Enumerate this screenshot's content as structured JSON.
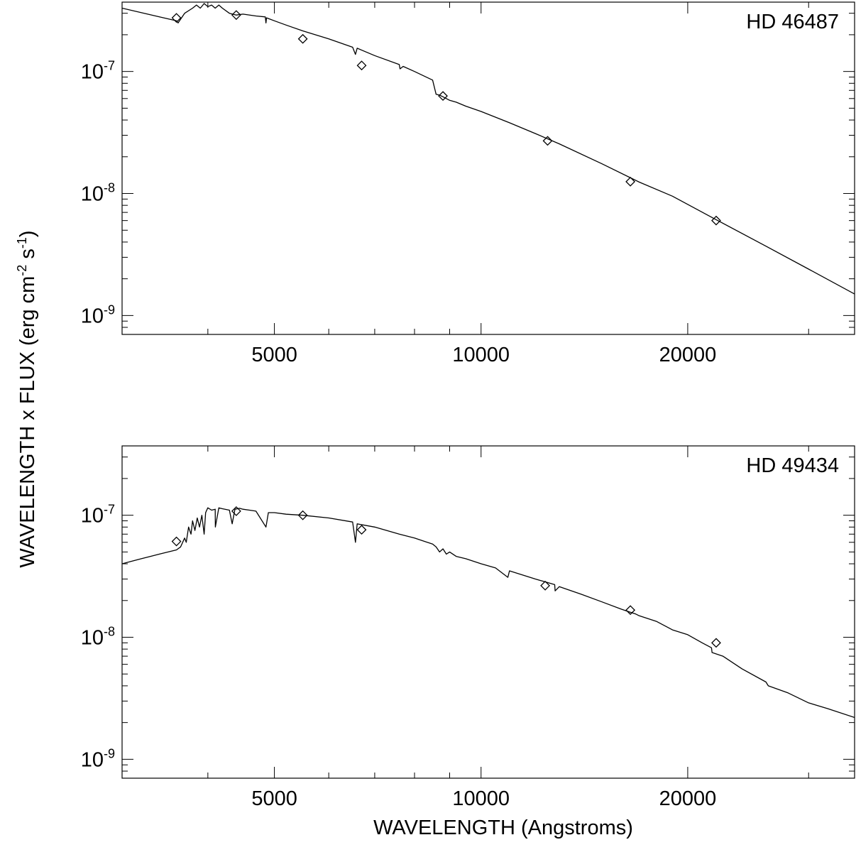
{
  "figure": {
    "ylabel": {
      "main": "WAVELENGTH x FLUX (erg cm",
      "cm_exp": "-2",
      "mid": " s",
      "s_exp": "-1",
      "end": ")"
    },
    "xlabel": "WAVELENGTH (Angstroms)"
  },
  "chart_data": [
    {
      "type": "line",
      "label": "HD 46487",
      "xscale": "log",
      "yscale": "log",
      "xlim": [
        3000,
        35000
      ],
      "ylim": [
        7e-10,
        3.7e-07
      ],
      "xticks": [
        {
          "value": 5000,
          "label": "5000"
        },
        {
          "value": 10000,
          "label": "10000"
        },
        {
          "value": 20000,
          "label": "20000"
        }
      ],
      "yticks": [
        {
          "value": 1e-07,
          "mantissa": "10",
          "exp": "-7"
        },
        {
          "value": 1e-08,
          "mantissa": "10",
          "exp": "-8"
        },
        {
          "value": 1e-09,
          "mantissa": "10",
          "exp": "-9"
        }
      ],
      "model": {
        "x": [
          3000,
          3400,
          3600,
          3620,
          3700,
          3800,
          3850,
          3900,
          3950,
          4000,
          4050,
          4100,
          4150,
          4200,
          4300,
          4400,
          4500,
          4700,
          4850,
          4861,
          4870,
          5000,
          5200,
          5500,
          6000,
          6500,
          6563,
          6600,
          7000,
          7600,
          7620,
          7700,
          8000,
          8500,
          8600,
          8700,
          8800,
          8900,
          9000,
          9200,
          9500,
          10000,
          11000,
          12000,
          13000,
          15000,
          17000,
          19000,
          22000,
          26000,
          30000,
          35000
        ],
        "y": [
          3.3e-07,
          2.8e-07,
          2.6e-07,
          2.5e-07,
          3e-07,
          3.3e-07,
          3.5e-07,
          3.3e-07,
          3.6e-07,
          3.4e-07,
          3.5e-07,
          3.3e-07,
          3.5e-07,
          3.3e-07,
          3e-07,
          2.9e-07,
          2.95e-07,
          2.85e-07,
          2.8e-07,
          2.5e-07,
          2.75e-07,
          2.6e-07,
          2.4e-07,
          2.15e-07,
          1.85e-07,
          1.58e-07,
          1.38e-07,
          1.55e-07,
          1.35e-07,
          1.14e-07,
          1.05e-07,
          1.1e-07,
          1e-07,
          8.5e-08,
          6.5e-08,
          6.4e-08,
          6.2e-08,
          6e-08,
          5.8e-08,
          5.6e-08,
          5.2e-08,
          4.7e-08,
          3.8e-08,
          3.1e-08,
          2.55e-08,
          1.75e-08,
          1.24e-08,
          9.5e-09,
          6.1e-09,
          3.7e-09,
          2.4e-09,
          1.5e-09
        ]
      },
      "photometry": {
        "x": [
          3600,
          4400,
          5500,
          6700,
          8800,
          12500,
          16500,
          22000
        ],
        "y": [
          2.75e-07,
          2.9e-07,
          1.85e-07,
          1.12e-07,
          6.3e-08,
          2.7e-08,
          1.25e-08,
          6e-09
        ]
      }
    },
    {
      "type": "line",
      "label": "HD 49434",
      "xscale": "log",
      "yscale": "log",
      "xlim": [
        3000,
        35000
      ],
      "ylim": [
        7e-10,
        3.7e-07
      ],
      "xticks": [
        {
          "value": 5000,
          "label": "5000"
        },
        {
          "value": 10000,
          "label": "10000"
        },
        {
          "value": 20000,
          "label": "20000"
        }
      ],
      "yticks": [
        {
          "value": 1e-07,
          "mantissa": "10",
          "exp": "-7"
        },
        {
          "value": 1e-08,
          "mantissa": "10",
          "exp": "-8"
        },
        {
          "value": 1e-09,
          "mantissa": "10",
          "exp": "-9"
        }
      ],
      "model": {
        "x": [
          3000,
          3100,
          3200,
          3300,
          3400,
          3500,
          3600,
          3650,
          3700,
          3720,
          3750,
          3780,
          3800,
          3830,
          3860,
          3890,
          3920,
          3950,
          3970,
          4000,
          4050,
          4100,
          4102,
          4150,
          4200,
          4300,
          4340,
          4380,
          4450,
          4500,
          4600,
          4700,
          4861,
          4900,
          5000,
          5200,
          5500,
          6000,
          6500,
          6563,
          6600,
          7000,
          7600,
          8000,
          8500,
          8600,
          8700,
          8800,
          8900,
          9000,
          9200,
          9500,
          10000,
          10500,
          10940,
          11000,
          12000,
          12800,
          12820,
          13000,
          14000,
          15000,
          16000,
          16800,
          17000,
          18000,
          19000,
          20000,
          21000,
          21660,
          21700,
          22500,
          24000,
          26000,
          26200,
          28000,
          30000,
          32000,
          35000
        ],
        "y": [
          4e-08,
          4.2e-08,
          4.4e-08,
          4.6e-08,
          4.8e-08,
          5e-08,
          5.2e-08,
          5.5e-08,
          6.5e-08,
          6e-08,
          8e-08,
          7e-08,
          9e-08,
          7.5e-08,
          9.5e-08,
          8e-08,
          1e-07,
          7e-08,
          1.05e-07,
          1.15e-07,
          1.1e-07,
          1.12e-07,
          8e-08,
          1.15e-07,
          1.13e-07,
          1.1e-07,
          8.5e-08,
          1.12e-07,
          1.14e-07,
          1.12e-07,
          1.1e-07,
          1.08e-07,
          8e-08,
          1.05e-07,
          1.05e-07,
          1.02e-07,
          1e-07,
          9.5e-08,
          8.8e-08,
          6e-08,
          8.5e-08,
          8e-08,
          7e-08,
          6.5e-08,
          5.8e-08,
          5.5e-08,
          5e-08,
          5.3e-08,
          4.8e-08,
          5e-08,
          4.6e-08,
          4.4e-08,
          4e-08,
          3.7e-08,
          3.1e-08,
          3.5e-08,
          3e-08,
          2.7e-08,
          2.4e-08,
          2.6e-08,
          2.25e-08,
          1.95e-08,
          1.7e-08,
          1.55e-08,
          1.5e-08,
          1.35e-08,
          1.15e-08,
          1.05e-08,
          9e-09,
          8.2e-09,
          7.5e-09,
          7e-09,
          5.5e-09,
          4.3e-09,
          4e-09,
          3.5e-09,
          2.9e-09,
          2.6e-09,
          2.2e-09
        ]
      },
      "photometry": {
        "x": [
          3600,
          4400,
          5500,
          6700,
          12400,
          16500,
          22000
        ],
        "y": [
          6.1e-08,
          1.08e-07,
          1e-07,
          7.6e-08,
          2.65e-08,
          1.67e-08,
          9e-09
        ]
      }
    }
  ]
}
